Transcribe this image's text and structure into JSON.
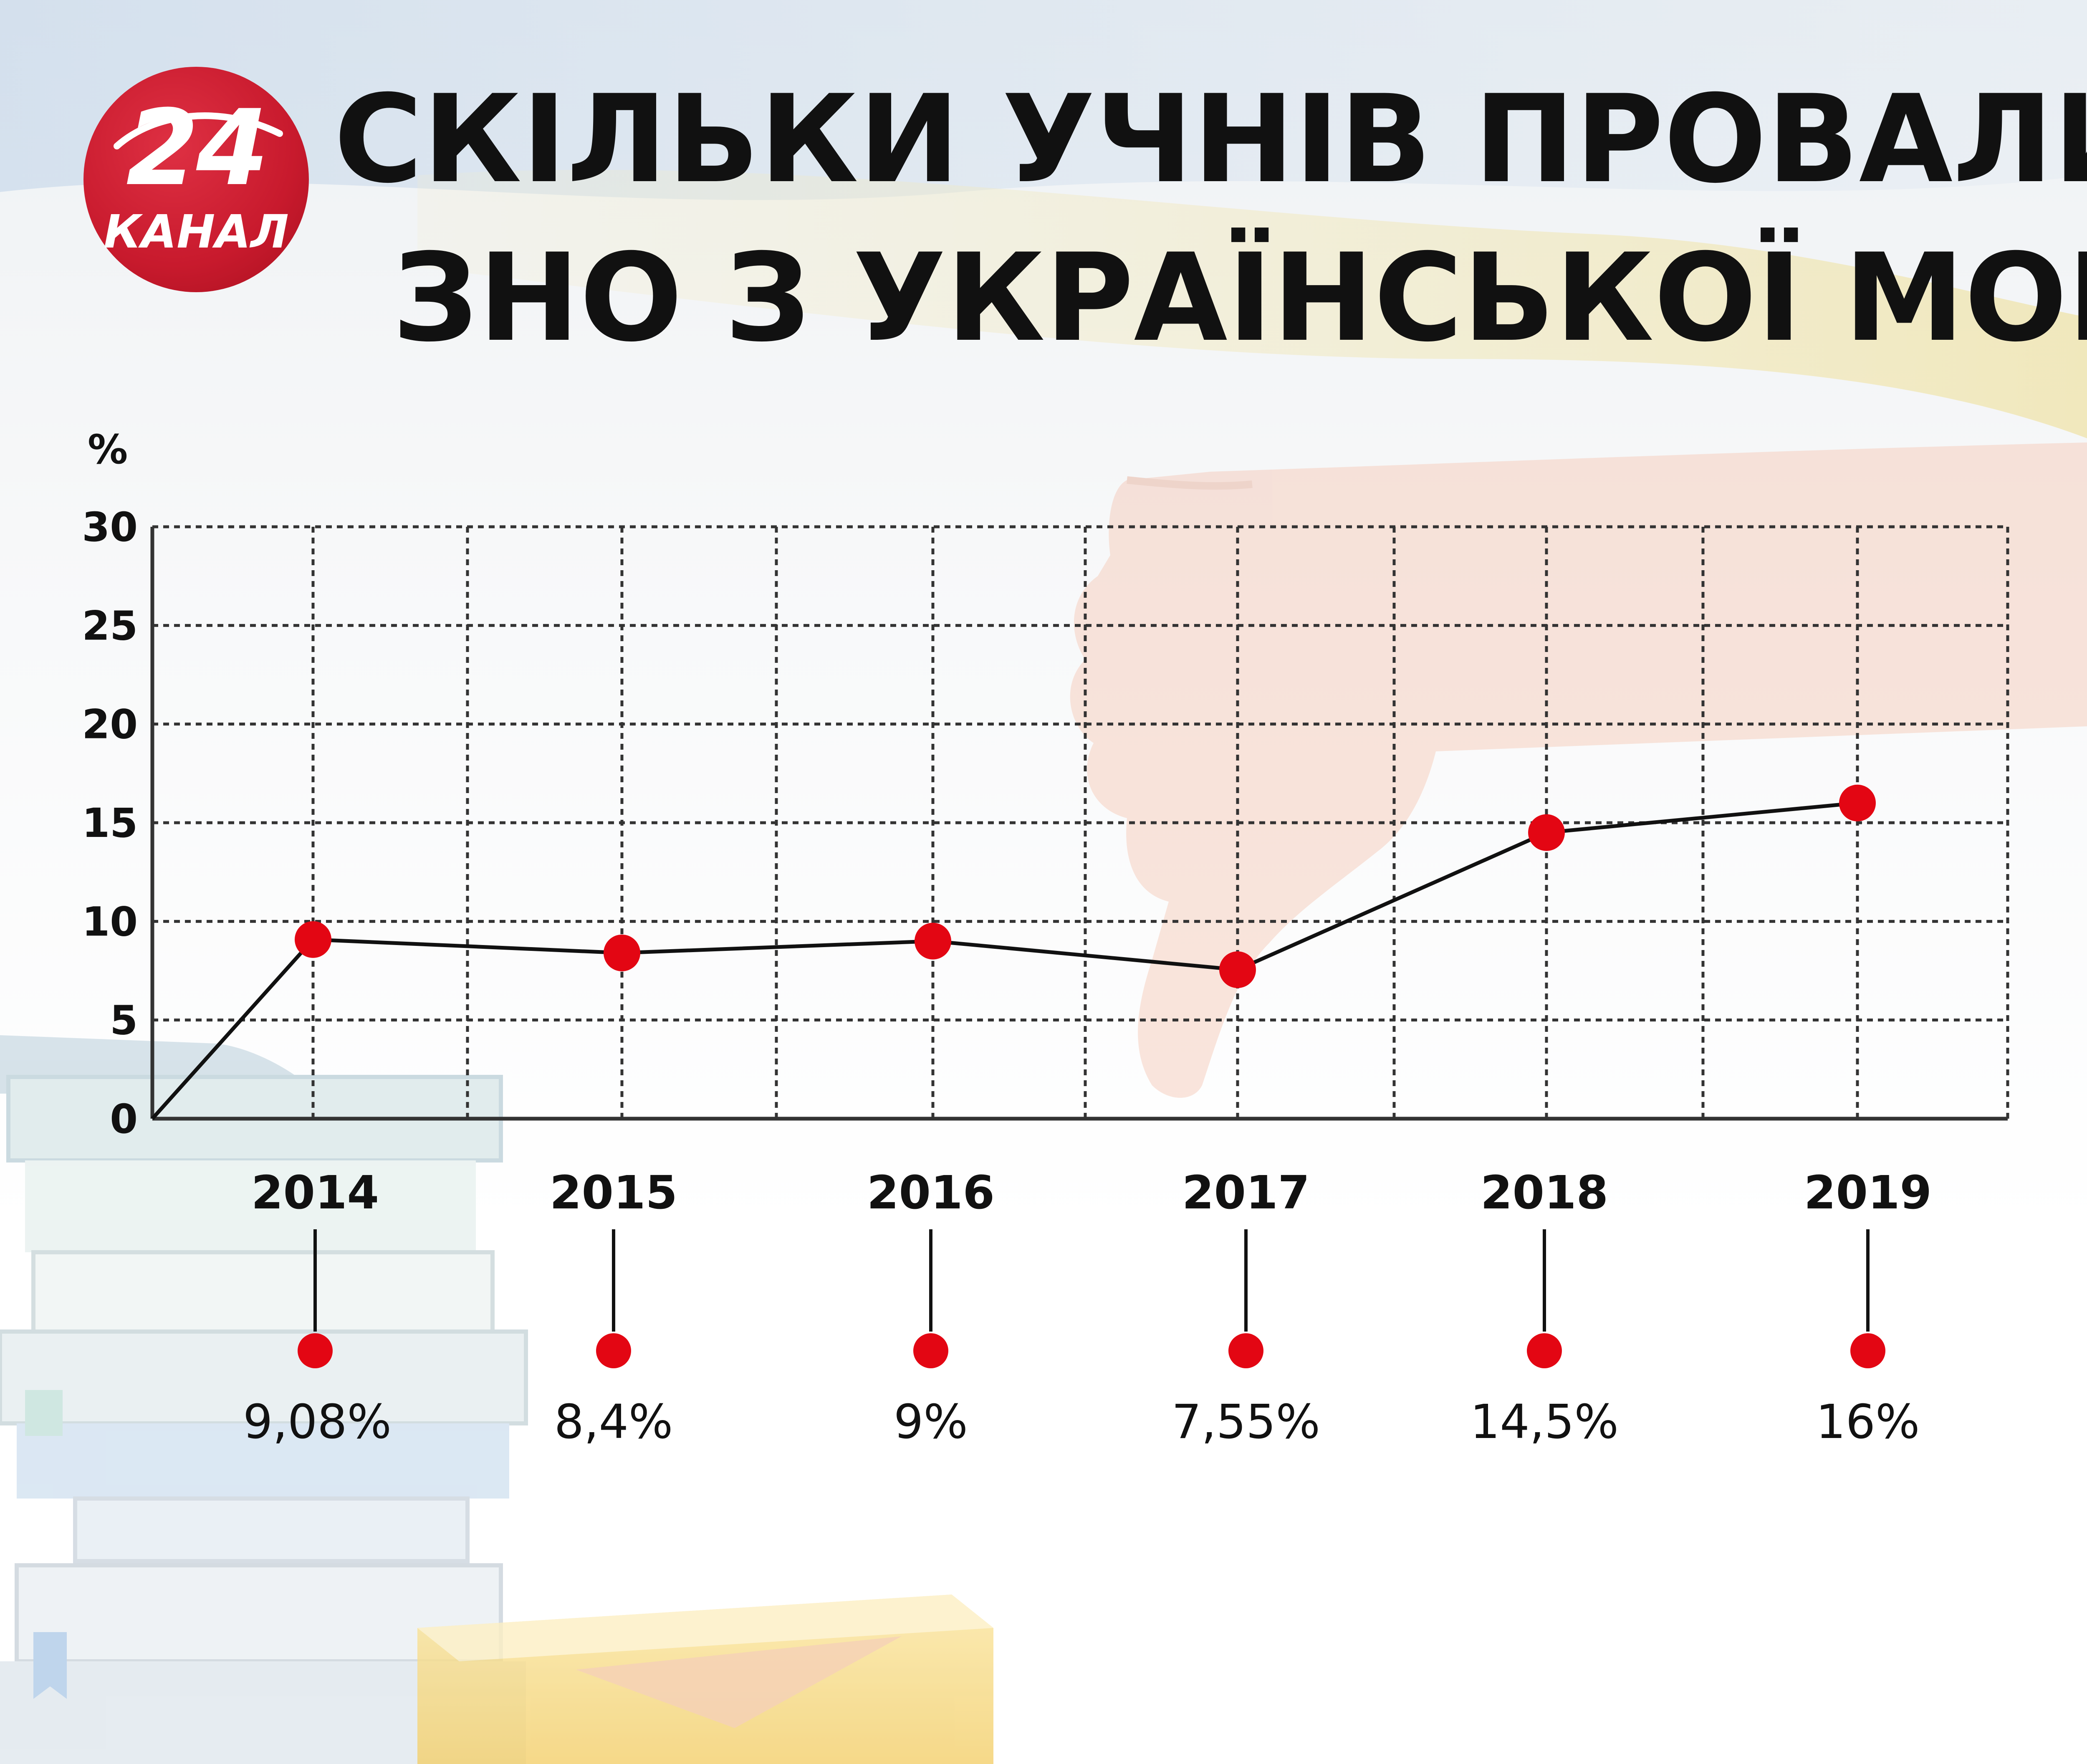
{
  "title": {
    "line1": "СКІЛЬКИ УЧНІВ ПРОВАЛИЛИ",
    "line2": "ЗНО З УКРАЇНСЬКОЇ МОВИ"
  },
  "logo": {
    "number": "24",
    "word": "КАНАЛ"
  },
  "colors": {
    "accent": "#e30613",
    "line": "#111111",
    "grid": "#333333",
    "logo": "#c81a2d"
  },
  "chart_data": {
    "type": "line",
    "ylabel": "%",
    "ylim": [
      0,
      30
    ],
    "yticks": [
      0,
      5,
      10,
      15,
      20,
      25,
      30
    ],
    "grid": true,
    "categories": [
      "2014",
      "2015",
      "2016",
      "2017",
      "2018",
      "2019"
    ],
    "values": [
      9.08,
      8.4,
      9,
      7.55,
      14.5,
      16
    ],
    "value_labels": [
      "9,08%",
      "8,4%",
      "9%",
      "7,55%",
      "14,5%",
      "16%"
    ]
  }
}
